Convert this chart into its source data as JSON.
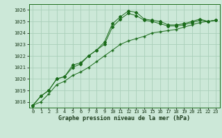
{
  "title": "Graphe pression niveau de la mer (hPa)",
  "bg_color": "#cce8d8",
  "grid_color": "#aacfba",
  "line_color": "#1a6b1a",
  "x_labels": [
    "0",
    "1",
    "2",
    "3",
    "4",
    "5",
    "6",
    "7",
    "8",
    "9",
    "10",
    "11",
    "12",
    "13",
    "14",
    "15",
    "16",
    "17",
    "18",
    "19",
    "20",
    "21",
    "22",
    "23"
  ],
  "ylim": [
    1017.5,
    1026.5
  ],
  "yticks": [
    1018,
    1019,
    1020,
    1021,
    1022,
    1023,
    1024,
    1025,
    1026
  ],
  "series1": [
    1017.7,
    1018.5,
    1019.0,
    1020.0,
    1020.2,
    1021.2,
    1021.4,
    1022.0,
    1022.5,
    1023.2,
    1024.8,
    1025.4,
    1025.9,
    1025.8,
    1025.2,
    1025.1,
    1025.0,
    1024.7,
    1024.7,
    1024.8,
    1025.0,
    1025.2,
    1025.0,
    1025.1
  ],
  "series2": [
    1017.7,
    1018.5,
    1019.0,
    1020.0,
    1020.2,
    1021.0,
    1021.3,
    1022.0,
    1022.5,
    1023.0,
    1024.5,
    1025.2,
    1025.7,
    1025.5,
    1025.1,
    1025.0,
    1024.8,
    1024.6,
    1024.6,
    1024.7,
    1024.9,
    1025.1,
    1025.0,
    1025.1
  ],
  "series3": [
    1017.7,
    1018.0,
    1018.7,
    1019.5,
    1019.8,
    1020.3,
    1020.6,
    1021.0,
    1021.5,
    1022.0,
    1022.5,
    1023.0,
    1023.3,
    1023.5,
    1023.7,
    1024.0,
    1024.1,
    1024.2,
    1024.3,
    1024.5,
    1024.7,
    1024.9,
    1025.0,
    1025.1
  ],
  "title_color": "#1a3a1a",
  "title_fontsize": 6.0,
  "tick_fontsize": 5.0
}
